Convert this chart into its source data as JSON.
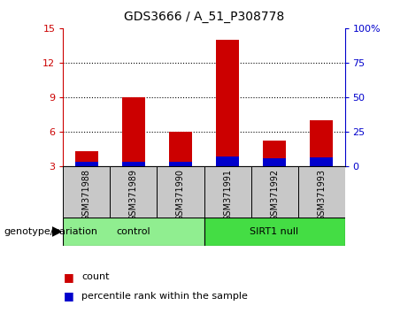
{
  "title": "GDS3666 / A_51_P308778",
  "samples": [
    "GSM371988",
    "GSM371989",
    "GSM371990",
    "GSM371991",
    "GSM371992",
    "GSM371993"
  ],
  "count_values": [
    4.3,
    9.0,
    6.0,
    14.0,
    5.2,
    7.0
  ],
  "percentile_values": [
    3.2,
    3.2,
    3.2,
    6.5,
    5.3,
    6.1
  ],
  "ylim_left": [
    3,
    15
  ],
  "ylim_right": [
    0,
    100
  ],
  "left_ticks": [
    3,
    6,
    9,
    12,
    15
  ],
  "right_ticks": [
    0,
    25,
    50,
    75,
    100
  ],
  "left_tick_labels": [
    "3",
    "6",
    "9",
    "12",
    "15"
  ],
  "right_tick_labels": [
    "0",
    "25",
    "50",
    "75",
    "100%"
  ],
  "groups": [
    {
      "label": "control",
      "start": 0,
      "end": 3,
      "color": "#90EE90"
    },
    {
      "label": "SIRT1 null",
      "start": 3,
      "end": 6,
      "color": "#44DD44"
    }
  ],
  "genotype_label": "genotype/variation",
  "legend_count_color": "#CC0000",
  "legend_pct_color": "#0000CC",
  "bar_color": "#CC0000",
  "pct_color": "#0000CC",
  "bar_width": 0.5,
  "plot_bg_color": "#FFFFFF",
  "tick_color_left": "#CC0000",
  "tick_color_right": "#0000CC",
  "gray_box_color": "#C8C8C8",
  "dotted_ticks": [
    6,
    9,
    12
  ]
}
